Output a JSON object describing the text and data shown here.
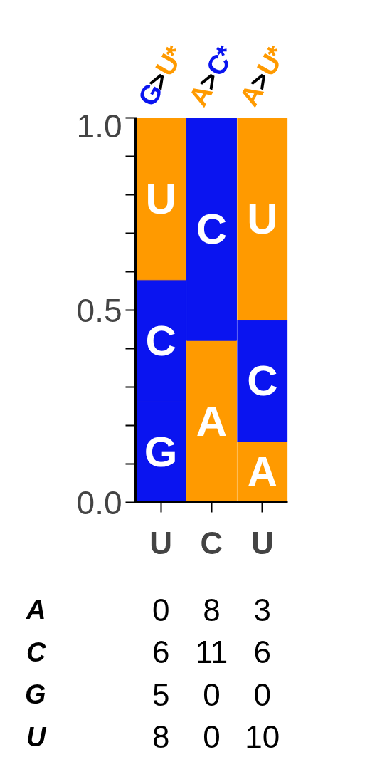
{
  "chart_data": [
    {
      "type": "bar",
      "stacked": true,
      "categories": [
        "U",
        "C",
        "U"
      ],
      "ylim": [
        0,
        1
      ],
      "yticks": [
        {
          "value": 0,
          "label": "0.0"
        },
        {
          "value": 0.1,
          "label": null
        },
        {
          "value": 0.2,
          "label": null
        },
        {
          "value": 0.3,
          "label": null
        },
        {
          "value": 0.4,
          "label": null
        },
        {
          "value": 0.5,
          "label": "0.5"
        },
        {
          "value": 0.6,
          "label": null
        },
        {
          "value": 0.7,
          "label": null
        },
        {
          "value": 0.8,
          "label": null
        },
        {
          "value": 0.9,
          "label": null
        },
        {
          "value": 1,
          "label": "1.0"
        }
      ],
      "series": [
        {
          "name": "G",
          "color": "#0a14f0",
          "values": [
            0.263,
            0,
            0
          ]
        },
        {
          "name": "A",
          "color": "#ff9a00",
          "values": [
            0,
            0.421,
            0.158
          ]
        },
        {
          "name": "C",
          "color": "#0a14f0",
          "values": [
            0.316,
            0.579,
            0.316
          ]
        },
        {
          "name": "U",
          "color": "#ff9a00",
          "values": [
            0.421,
            0,
            0.526
          ]
        }
      ],
      "annotations": [
        "G>U*",
        "A>C*",
        "A>U*"
      ],
      "grid": false
    },
    {
      "type": "heatmap",
      "categories": [
        null,
        null,
        null
      ],
      "y_categories": [
        "A",
        "C",
        "G",
        "U"
      ],
      "data_labels": true,
      "cells": [
        [
          0,
          8,
          3
        ],
        [
          6,
          11,
          6
        ],
        [
          5,
          0,
          0
        ],
        [
          8,
          0,
          10
        ]
      ]
    }
  ]
}
